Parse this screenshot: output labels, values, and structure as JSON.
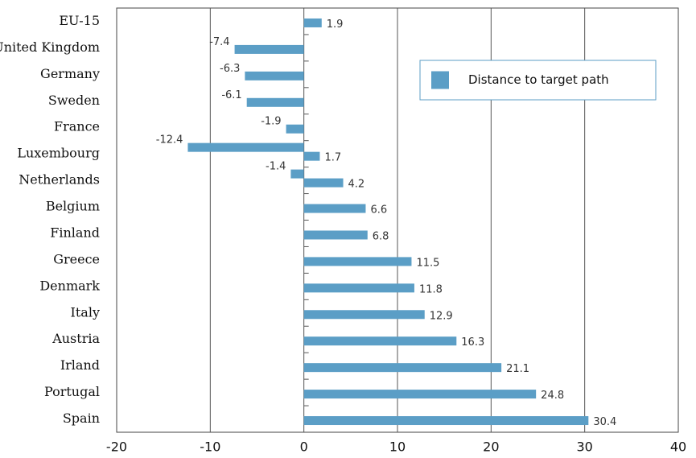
{
  "chart_data": {
    "type": "hbar",
    "categories": [
      "EU-15",
      "United Kingdom",
      "Germany",
      "Sweden",
      "France",
      "Luxembourg",
      "Netherlands",
      "Belgium",
      "Finland",
      "Greece",
      "Denmark",
      "Italy",
      "Austria",
      "Irland",
      "Portugal",
      "Spain"
    ],
    "series": [
      {
        "name": "Distance to target path",
        "color": "#5b9ec6",
        "values": [
          1.9,
          -7.4,
          -6.3,
          -6.1,
          -1.9,
          1.7,
          4.2,
          6.6,
          6.8,
          11.5,
          11.8,
          12.9,
          16.3,
          21.1,
          24.8,
          30.4
        ]
      },
      {
        "color": "#5b9ec6",
        "values": [
          null,
          null,
          null,
          null,
          null,
          -12.4,
          -1.4,
          null,
          null,
          null,
          null,
          null,
          null,
          null,
          null,
          null
        ]
      }
    ],
    "xlim": [
      -20,
      40
    ],
    "xticks": [
      -20,
      -10,
      0,
      10,
      20,
      30,
      40
    ],
    "grid": true,
    "legend": "upper right"
  }
}
